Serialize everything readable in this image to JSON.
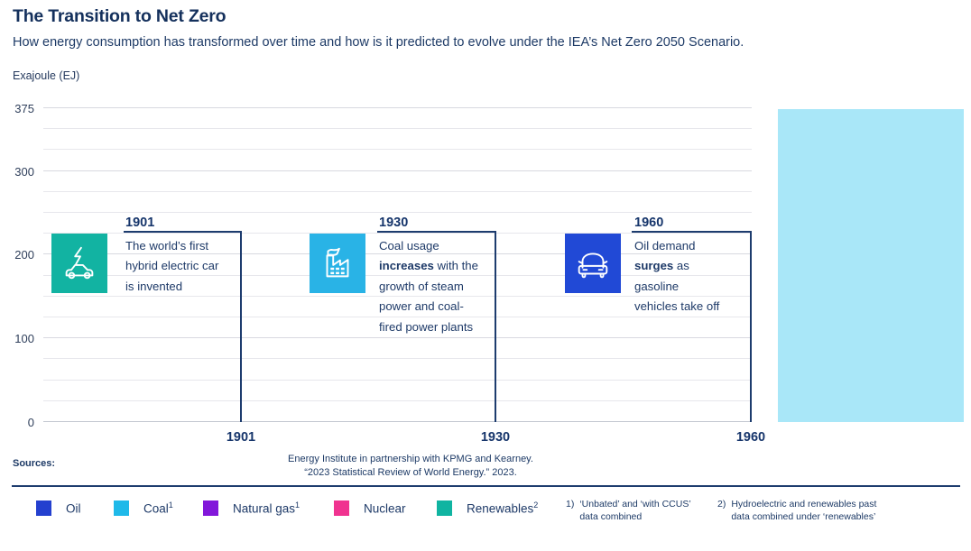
{
  "header": {
    "title": "The Transition to Net Zero",
    "subtitle": "How energy consumption has transformed over time and how is it predicted to evolve under the IEA’s Net Zero 2050 Scenario."
  },
  "chart_data": {
    "type": "area",
    "title": "The Transition to Net Zero",
    "ylabel": "Exajoule (EJ)",
    "ylim": [
      0,
      375
    ],
    "y_ticks": [
      0,
      100,
      200,
      300,
      375
    ],
    "y_gridline_step": 25,
    "x_ticks": [
      "1901",
      "1930",
      "1960"
    ],
    "grid": "horizontal gridlines every 25 EJ",
    "legend_position": "bottom",
    "series": [],
    "series_note": "No series values are rendered in this frame; only gridlines, era annotations and a highlighted region at the right edge of the plot are visible.",
    "highlight_region": {
      "color": "#a9e7f8",
      "description": "solid light-cyan block at right side of plot, full plot height"
    }
  },
  "annotations": [
    {
      "year": "1901",
      "icon": "electric-car-icon",
      "color": "#12b3a2",
      "lines": [
        {
          "b": "",
          "t": "The world’s first"
        },
        {
          "b": "",
          "t": "hybrid electric car"
        },
        {
          "b": "",
          "t": "is invented"
        }
      ]
    },
    {
      "year": "1930",
      "icon": "factory-icon",
      "color": "#29b3e6",
      "lines": [
        {
          "b": "",
          "t": "Coal usage"
        },
        {
          "b": "increases",
          "t": " with the"
        },
        {
          "b": "",
          "t": "growth of steam"
        },
        {
          "b": "",
          "t": "power and coal-"
        },
        {
          "b": "",
          "t": "fired power plants"
        }
      ]
    },
    {
      "year": "1960",
      "icon": "car-icon",
      "color": "#2149d6",
      "lines": [
        {
          "b": "",
          "t": "Oil demand"
        },
        {
          "b": "surges",
          "t": " as"
        },
        {
          "b": "",
          "t": "gasoline"
        },
        {
          "b": "",
          "t": "vehicles take off"
        }
      ]
    }
  ],
  "axis": {
    "unit_label": "Exajoule (EJ)"
  },
  "sources": {
    "label": "Sources:",
    "line1": "Energy Institute in partnership with KPMG and Kearney.",
    "line2": "“2023 Statistical Review of World Energy.” 2023."
  },
  "legend": {
    "items": [
      {
        "label": "Oil",
        "sup": "",
        "color": "#2440cf"
      },
      {
        "label": "Coal",
        "sup": "1",
        "color": "#1fb9e9"
      },
      {
        "label": "Natural gas",
        "sup": "1",
        "color": "#8217da"
      },
      {
        "label": "Nuclear",
        "sup": "",
        "color": "#f03390"
      },
      {
        "label": "Renewables",
        "sup": "2",
        "color": "#10b4a1"
      }
    ]
  },
  "footnotes": [
    {
      "num": "1)",
      "line1": "‘Unbated’ and ‘with CCUS’",
      "line2": "data combined"
    },
    {
      "num": "2)",
      "line1": "Hydroelectric and renewables past",
      "line2": "data combined under ‘renewables’"
    }
  ]
}
